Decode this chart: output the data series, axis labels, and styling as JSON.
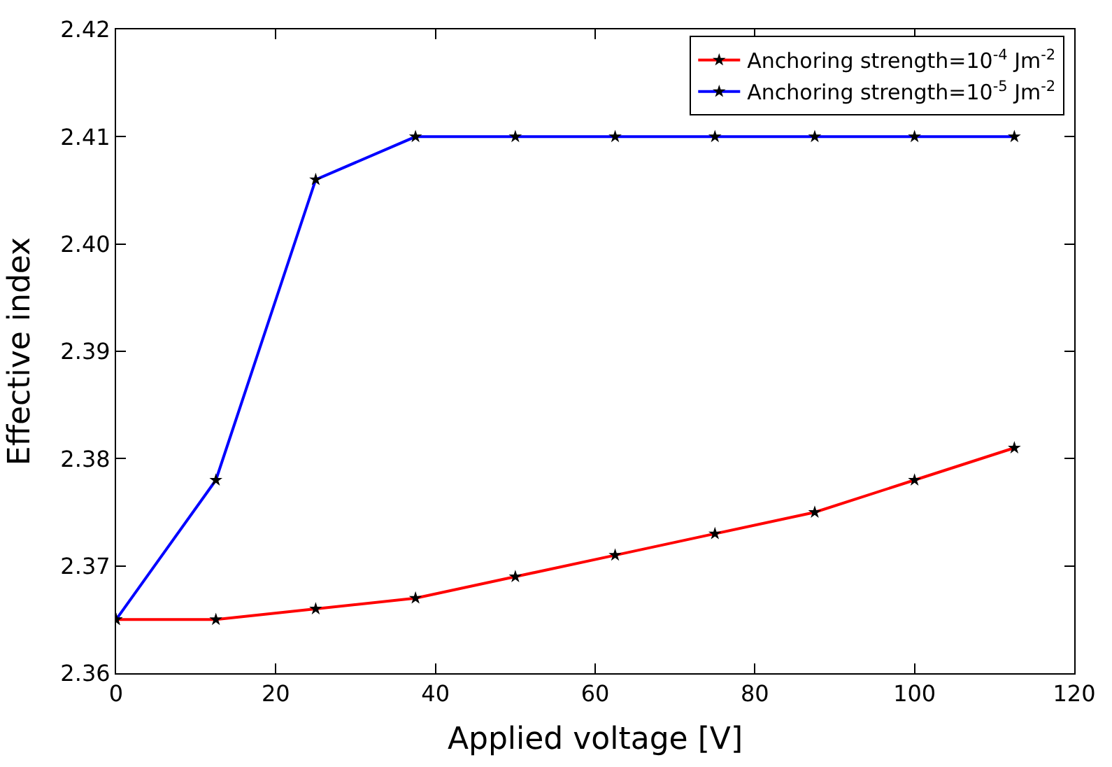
{
  "chart_data": {
    "type": "line",
    "xlabel": "Applied voltage [V]",
    "ylabel": "Effective index",
    "x": [
      0,
      12.5,
      25,
      37.5,
      50,
      62.5,
      75,
      87.5,
      100,
      112.5
    ],
    "series": [
      {
        "name": "Anchoring strength=10$^{-4}$ Jm$^{-2}$",
        "color": "#ff0000",
        "values": [
          2.365,
          2.365,
          2.366,
          2.367,
          2.369,
          2.371,
          2.373,
          2.375,
          2.378,
          2.381
        ]
      },
      {
        "name": "Anchoring strength=10$^{-5}$ Jm$^{-2}$",
        "color": "#0000ff",
        "values": [
          2.365,
          2.378,
          2.406,
          2.41,
          2.41,
          2.41,
          2.41,
          2.41,
          2.41,
          2.41
        ]
      }
    ],
    "xlim": [
      0,
      120
    ],
    "xticks": [
      0,
      20,
      40,
      60,
      80,
      100,
      120
    ],
    "ylim": [
      2.36,
      2.42
    ],
    "yticks": [
      2.36,
      2.37,
      2.38,
      2.39,
      {
        "value": 2.4,
        "label": "2.40"
      },
      2.41,
      2.42
    ],
    "legend": "top right",
    "marker": "star",
    "line_style": "solid"
  }
}
